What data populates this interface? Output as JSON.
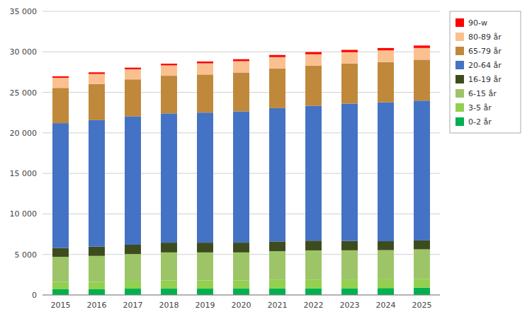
{
  "chart_data": {
    "type": "bar",
    "stacked": true,
    "grid": true,
    "legend": "right",
    "categories": [
      "2015",
      "2016",
      "2017",
      "2018",
      "2019",
      "2020",
      "2021",
      "2022",
      "2023",
      "2024",
      "2025"
    ],
    "series": [
      {
        "name": "0-2 år",
        "color": "#00b050",
        "values": [
          700,
          700,
          780,
          780,
          780,
          780,
          800,
          820,
          830,
          850,
          900
        ]
      },
      {
        "name": "3-5 år",
        "color": "#92d050",
        "values": [
          900,
          920,
          970,
          1020,
          1020,
          1020,
          1050,
          1080,
          1080,
          1080,
          1080
        ]
      },
      {
        "name": "6-15 år",
        "color": "#9dc568",
        "values": [
          3100,
          3200,
          3300,
          3450,
          3450,
          3450,
          3550,
          3600,
          3600,
          3600,
          3650
        ]
      },
      {
        "name": "16-19 år",
        "color": "#3d4c1e",
        "values": [
          1100,
          1150,
          1150,
          1200,
          1200,
          1200,
          1200,
          1200,
          1150,
          1100,
          1100
        ]
      },
      {
        "name": "20-64 år",
        "color": "#4472c4",
        "values": [
          15400,
          15600,
          15850,
          15950,
          16050,
          16200,
          16450,
          16650,
          16950,
          17150,
          17250
        ]
      },
      {
        "name": "65-79 år",
        "color": "#c0883a",
        "values": [
          4350,
          4450,
          4550,
          4650,
          4700,
          4800,
          4900,
          4950,
          4950,
          4950,
          5050
        ]
      },
      {
        "name": "80-89 år",
        "color": "#fac090",
        "values": [
          1250,
          1250,
          1250,
          1280,
          1380,
          1400,
          1400,
          1400,
          1400,
          1450,
          1450
        ]
      },
      {
        "name": "90-w",
        "color": "#ff0000",
        "values": [
          180,
          200,
          200,
          210,
          230,
          240,
          260,
          270,
          280,
          290,
          300
        ]
      }
    ],
    "ylim": [
      0,
      35000
    ],
    "yticks": [
      0,
      {
        "value": 5000,
        "label": "5 000"
      },
      {
        "value": 10000,
        "label": "10 000"
      },
      {
        "value": 15000,
        "label": "15 000"
      },
      {
        "value": 20000,
        "label": "20 000"
      },
      {
        "value": 25000,
        "label": "25 000"
      },
      {
        "value": 30000,
        "label": "30 000"
      },
      {
        "value": 35000,
        "label": "35 000"
      }
    ]
  }
}
